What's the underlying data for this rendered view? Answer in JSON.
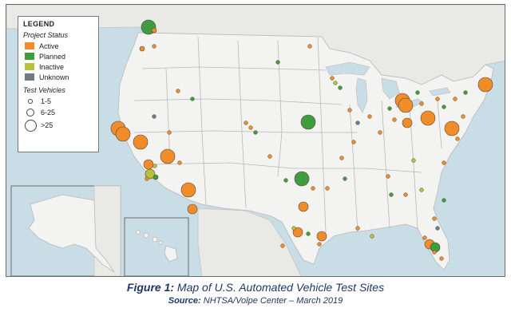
{
  "legend": {
    "title": "LEGEND",
    "status_heading": "Project Status",
    "statuses": [
      {
        "label": "Active",
        "color": "#f08c2a"
      },
      {
        "label": "Planned",
        "color": "#3e9d3f"
      },
      {
        "label": "Inactive",
        "color": "#b7c23a"
      },
      {
        "label": "Unknown",
        "color": "#6f7b85"
      }
    ],
    "vehicles_heading": "Test Vehicles",
    "sizes": [
      {
        "label": "1-5"
      },
      {
        "label": "6-25"
      },
      {
        "label": ">25"
      }
    ]
  },
  "caption": {
    "figure_label": "Figure 1:",
    "figure_text": " Map of U.S. Automated Vehicle Test Sites",
    "source_label": "Source:",
    "source_text": " NHTSA/Volpe Center – March 2019"
  },
  "colors": {
    "active": "#f08c2a",
    "planned": "#3e9d3f",
    "inactive": "#b7c23a",
    "unknown": "#6f7b85",
    "water": "#c9dde6"
  },
  "sites": [
    {
      "status": "planned",
      "size": "large",
      "place": "Seattle WA"
    },
    {
      "status": "active",
      "size": "small",
      "place": "Seattle WA"
    },
    {
      "status": "active",
      "size": "small",
      "place": "Portland OR"
    },
    {
      "status": "active",
      "size": "large",
      "place": "San Francisco CA"
    },
    {
      "status": "active",
      "size": "large",
      "place": "Bay Area CA"
    },
    {
      "status": "active",
      "size": "large",
      "place": "Sacramento CA"
    },
    {
      "status": "active",
      "size": "large",
      "place": "Las Vegas NV"
    },
    {
      "status": "active",
      "size": "large",
      "place": "Phoenix AZ"
    },
    {
      "status": "active",
      "size": "medium",
      "place": "Los Angeles CA"
    },
    {
      "status": "inactive",
      "size": "medium",
      "place": "Southern CA"
    },
    {
      "status": "planned",
      "size": "small",
      "place": "Southern CA"
    },
    {
      "status": "active",
      "size": "medium",
      "place": "Tucson AZ"
    },
    {
      "status": "planned",
      "size": "large",
      "place": "Oklahoma"
    },
    {
      "status": "planned",
      "size": "large",
      "place": "Iowa"
    },
    {
      "status": "active",
      "size": "medium",
      "place": "Dallas TX"
    },
    {
      "status": "active",
      "size": "medium",
      "place": "Austin TX"
    },
    {
      "status": "active",
      "size": "large",
      "place": "Detroit MI"
    },
    {
      "status": "active",
      "size": "large",
      "place": "Ann Arbor MI"
    },
    {
      "status": "active",
      "size": "large",
      "place": "Pittsburgh PA"
    },
    {
      "status": "active",
      "size": "medium",
      "place": "Columbus OH"
    },
    {
      "status": "active",
      "size": "large",
      "place": "Washington DC"
    },
    {
      "status": "active",
      "size": "large",
      "place": "Boston MA"
    },
    {
      "status": "active",
      "size": "medium",
      "place": "Florida"
    },
    {
      "status": "planned",
      "size": "medium",
      "place": "Florida"
    },
    {
      "status": "active",
      "size": "medium",
      "place": "Houston TX"
    }
  ]
}
